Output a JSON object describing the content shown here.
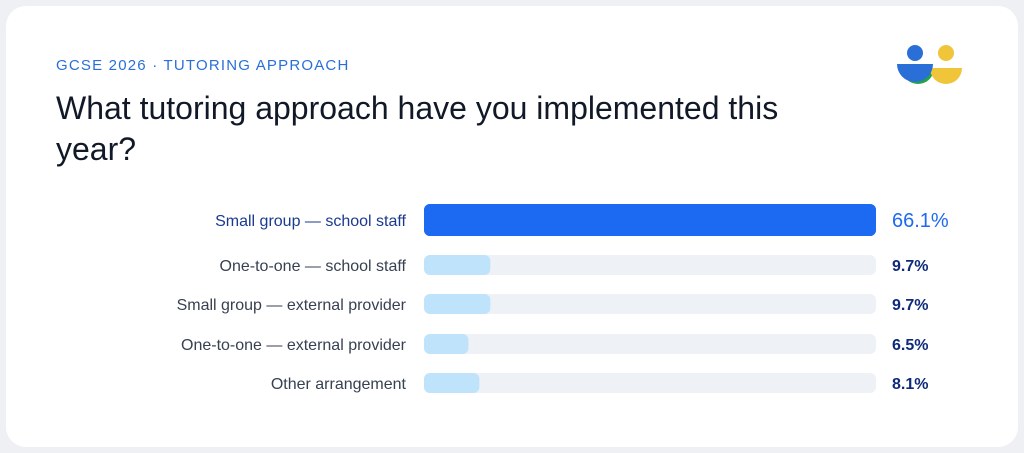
{
  "header": {
    "eyebrow": "GCSE 2026 · TUTORING APPROACH",
    "title": "What tutoring approach have you implemented this year?"
  },
  "logo": {
    "icon": "people-logo-icon",
    "colors": [
      "#2a6fd8",
      "#22a34a",
      "#f0c53a"
    ]
  },
  "colors": {
    "highlight_bar": "#1d6af2",
    "bar": "#bfe3fb",
    "track": "#eef1f6",
    "highlight_text": "#1b3a8f",
    "value_text": "#0f2a7a"
  },
  "chart_data": {
    "type": "bar",
    "orientation": "horizontal",
    "title": "What tutoring approach have you implemented this year?",
    "categories": [
      "Small group — school staff",
      "One-to-one — school staff",
      "Small group — external provider",
      "One-to-one — external provider",
      "Other arrangement"
    ],
    "values": [
      66.1,
      9.7,
      9.7,
      6.5,
      8.1
    ],
    "value_labels": [
      "66.1%",
      "9.7%",
      "9.7%",
      "6.5%",
      "8.1%"
    ],
    "unit": "%",
    "xlim": [
      0,
      66.1
    ],
    "highlight_index": 0,
    "grid": false,
    "legend": "none"
  }
}
